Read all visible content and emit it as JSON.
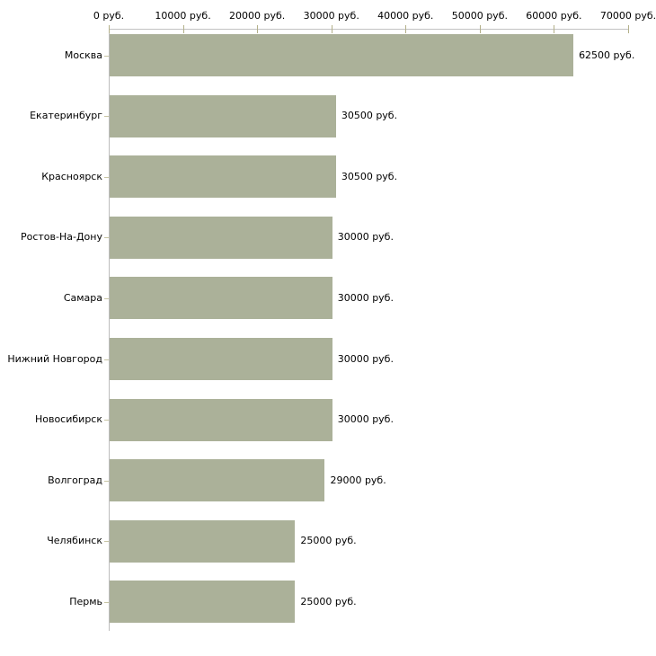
{
  "chart_data": {
    "type": "bar",
    "orientation": "horizontal",
    "title": "",
    "xlabel": "",
    "ylabel": "",
    "categories": [
      "Москва",
      "Екатеринбург",
      "Красноярск",
      "Ростов-На-Дону",
      "Самара",
      "Нижний Новгород",
      "Новосибирск",
      "Волгоград",
      "Челябинск",
      "Пермь"
    ],
    "values": [
      62500,
      30500,
      30500,
      30000,
      30000,
      30000,
      30000,
      29000,
      25000,
      25000
    ],
    "value_labels": [
      "62500 руб.",
      "30500 руб.",
      "30500 руб.",
      "30000 руб.",
      "30000 руб.",
      "30000 руб.",
      "30000 руб.",
      "29000 руб.",
      "25000 руб.",
      "25000 руб."
    ],
    "x_tick_labels": [
      "0 руб.",
      "10000 руб.",
      "20000 руб.",
      "30000 руб.",
      "40000 руб.",
      "50000 руб.",
      "60000 руб.",
      "70000 руб."
    ],
    "x_tick_values": [
      0,
      10000,
      20000,
      30000,
      40000,
      50000,
      60000,
      70000
    ],
    "xlim": [
      0,
      70000
    ],
    "grid": false,
    "legend": "none",
    "axis_position": "top",
    "bar_color": "#abb199",
    "axis_line_color": "#c2c2c2",
    "tick_mark_color": "#b3b089",
    "text_color": "#000000",
    "background_color": "#ffffff"
  }
}
